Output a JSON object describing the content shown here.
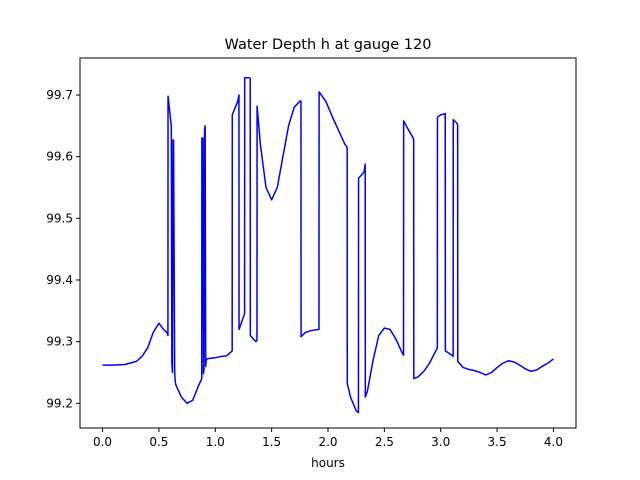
{
  "chart_data": {
    "type": "line",
    "title": "Water Depth h at gauge 120",
    "xlabel": "hours",
    "ylabel": "",
    "xlim": [
      -0.2,
      4.2
    ],
    "ylim": [
      99.16,
      99.76
    ],
    "x_ticks": [
      0.0,
      0.5,
      1.0,
      1.5,
      2.0,
      2.5,
      3.0,
      3.5,
      4.0
    ],
    "x_tick_labels": [
      "0.0",
      "0.5",
      "1.0",
      "1.5",
      "2.0",
      "2.5",
      "3.0",
      "3.5",
      "4.0"
    ],
    "y_ticks": [
      99.2,
      99.3,
      99.4,
      99.5,
      99.6,
      99.7
    ],
    "y_tick_labels": [
      "99.2",
      "99.3",
      "99.4",
      "99.5",
      "99.6",
      "99.7"
    ],
    "grid": false,
    "series": [
      {
        "color": "#0000ff",
        "x": [
          0.0,
          0.1,
          0.2,
          0.3,
          0.35,
          0.4,
          0.45,
          0.5,
          0.54,
          0.57,
          0.58,
          0.581,
          0.61,
          0.615,
          0.62,
          0.625,
          0.63,
          0.64,
          0.645,
          0.65,
          0.7,
          0.75,
          0.8,
          0.85,
          0.88,
          0.881,
          0.89,
          0.895,
          0.9,
          0.905,
          0.91,
          0.915,
          0.92,
          0.925,
          0.93,
          0.95,
          1.0,
          1.05,
          1.1,
          1.15,
          1.151,
          1.2,
          1.21,
          1.211,
          1.25,
          1.26,
          1.261,
          1.3,
          1.31,
          1.311,
          1.36,
          1.37,
          1.371,
          1.4,
          1.45,
          1.5,
          1.55,
          1.6,
          1.65,
          1.7,
          1.75,
          1.76,
          1.761,
          1.8,
          1.85,
          1.92,
          1.921,
          1.98,
          2.05,
          2.1,
          2.15,
          2.17,
          2.171,
          2.2,
          2.25,
          2.27,
          2.271,
          2.32,
          2.33,
          2.331,
          2.35,
          2.4,
          2.45,
          2.5,
          2.55,
          2.6,
          2.65,
          2.67,
          2.671,
          2.7,
          2.75,
          2.76,
          2.761,
          2.8,
          2.85,
          2.9,
          2.97,
          2.971,
          3.0,
          3.03,
          3.04,
          3.041,
          3.1,
          3.11,
          3.111,
          3.14,
          3.15,
          3.151,
          3.2,
          3.25,
          3.3,
          3.35,
          3.4,
          3.45,
          3.5,
          3.55,
          3.6,
          3.65,
          3.7,
          3.75,
          3.8,
          3.85,
          3.9,
          3.95,
          4.0
        ],
        "y": [
          99.262,
          99.262,
          99.263,
          99.268,
          99.276,
          99.29,
          99.315,
          99.33,
          99.32,
          99.315,
          99.31,
          99.698,
          99.65,
          99.265,
          99.25,
          99.627,
          99.627,
          99.25,
          99.235,
          99.23,
          99.21,
          99.2,
          99.205,
          99.228,
          99.24,
          99.63,
          99.63,
          99.248,
          99.255,
          99.645,
          99.65,
          99.26,
          99.27,
          99.272,
          99.272,
          99.273,
          99.274,
          99.276,
          99.277,
          99.285,
          99.668,
          99.69,
          99.7,
          99.32,
          99.34,
          99.345,
          99.728,
          99.728,
          99.727,
          99.31,
          99.3,
          99.302,
          99.682,
          99.62,
          99.55,
          99.53,
          99.55,
          99.6,
          99.65,
          99.68,
          99.69,
          99.69,
          99.308,
          99.315,
          99.318,
          99.32,
          99.705,
          99.69,
          99.66,
          99.64,
          99.62,
          99.615,
          99.232,
          99.21,
          99.188,
          99.185,
          99.565,
          99.575,
          99.588,
          99.21,
          99.22,
          99.27,
          99.31,
          99.322,
          99.32,
          99.305,
          99.285,
          99.278,
          99.658,
          99.648,
          99.632,
          99.628,
          99.24,
          99.243,
          99.252,
          99.265,
          99.29,
          99.664,
          99.668,
          99.669,
          99.67,
          99.285,
          99.278,
          99.276,
          99.66,
          99.655,
          99.652,
          99.268,
          99.258,
          99.255,
          99.253,
          99.25,
          99.246,
          99.25,
          99.258,
          99.265,
          99.269,
          99.267,
          99.262,
          99.256,
          99.252,
          99.254,
          99.26,
          99.265,
          99.272
        ]
      }
    ]
  }
}
